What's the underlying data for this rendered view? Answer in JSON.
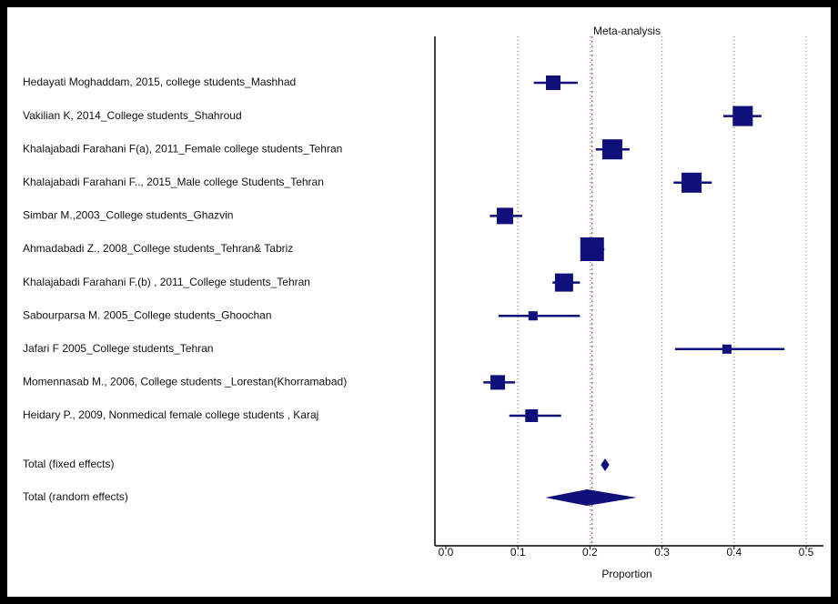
{
  "chart_data": {
    "type": "forest",
    "title": "Meta-analysis",
    "xlabel": "Proportion",
    "categories": [
      "Hedayati Moghaddam, 2015, college students_Mashhad",
      "Vakilian K, 2014_College students_Shahroud",
      "Khalajabadi Farahani F(a), 2011_Female college students_Tehran",
      "Khalajabadi Farahani F.., 2015_Male college Students_Tehran",
      "Simbar M.,2003_College students_Ghazvin",
      "Ahmadabadi Z., 2008_College students_Tehran& Tabriz",
      "Khalajabadi Farahani F.(b) , 2011_College students_Tehran",
      "Sabourparsa M. 2005_College students_Ghoochan",
      "Jafari F 2005_College students_Tehran",
      "Momennasab M., 2006, College students _Lorestan(Khorramabad)",
      "Heidary P., 2009, Nonmedical female college students , Karaj"
    ],
    "estimate": [
      0.149,
      0.412,
      0.231,
      0.341,
      0.082,
      0.203,
      0.164,
      0.121,
      0.39,
      0.072,
      0.119
    ],
    "lower": [
      0.122,
      0.385,
      0.208,
      0.316,
      0.061,
      0.187,
      0.148,
      0.073,
      0.318,
      0.052,
      0.088
    ],
    "upper": [
      0.183,
      0.438,
      0.255,
      0.369,
      0.106,
      0.22,
      0.186,
      0.186,
      0.47,
      0.096,
      0.16
    ],
    "weights": [
      3.8,
      7.2,
      7.2,
      7.2,
      4.8,
      10,
      5.9,
      1.5,
      1.5,
      3.8,
      2.9
    ],
    "pooled": [
      {
        "name": "Total (fixed effects)",
        "estimate": 0.221,
        "lower": 0.215,
        "upper": 0.227
      },
      {
        "name": "Total (random effects)",
        "estimate": 0.196,
        "lower": 0.138,
        "upper": 0.265
      }
    ],
    "reference_line": 0.203,
    "reference_color": "#b22222",
    "color": "#10107a",
    "xlim": [
      0,
      0.5
    ],
    "xticks": [
      {
        "value": 0,
        "label": "0.0"
      },
      0.1,
      0.2,
      0.3,
      0.4,
      0.5
    ],
    "grid": true
  }
}
